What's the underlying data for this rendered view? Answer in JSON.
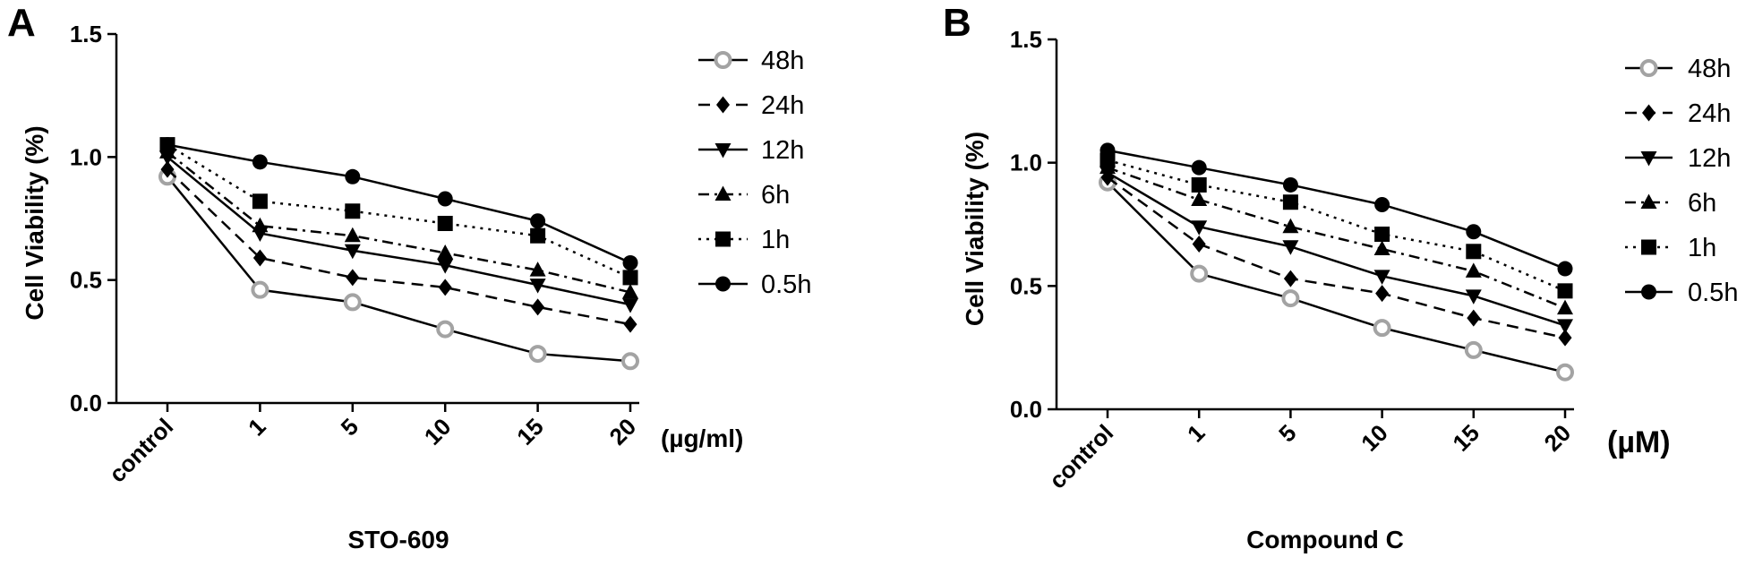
{
  "chart_data": [
    {
      "type": "line",
      "panel_label": "A",
      "title": "",
      "xlabel": "STO-609",
      "x_unit": "(µg/ml)",
      "ylabel": "Cell Viability (%)",
      "categories": [
        "control",
        "1",
        "5",
        "10",
        "15",
        "20"
      ],
      "ylim": [
        0,
        1.5
      ],
      "yticks": [
        "0.0",
        "0.5",
        "1.0",
        "1.5"
      ],
      "grid": false,
      "legend_position": "right",
      "series": [
        {
          "name": "48h",
          "marker": "open-circle",
          "dash": "solid",
          "values": [
            0.92,
            0.46,
            0.41,
            0.3,
            0.2,
            0.17
          ]
        },
        {
          "name": "24h",
          "marker": "diamond",
          "dash": "dashed",
          "values": [
            0.95,
            0.59,
            0.51,
            0.47,
            0.39,
            0.32
          ]
        },
        {
          "name": "12h",
          "marker": "triangle-down",
          "dash": "solid",
          "values": [
            1.0,
            0.69,
            0.62,
            0.56,
            0.48,
            0.4
          ]
        },
        {
          "name": "6h",
          "marker": "triangle-up",
          "dash": "dashdot",
          "values": [
            1.02,
            0.72,
            0.68,
            0.61,
            0.54,
            0.45
          ]
        },
        {
          "name": "1h",
          "marker": "square",
          "dash": "dotted",
          "values": [
            1.05,
            0.82,
            0.78,
            0.73,
            0.68,
            0.51
          ]
        },
        {
          "name": "0.5h",
          "marker": "filled-circle",
          "dash": "solid",
          "values": [
            1.05,
            0.98,
            0.92,
            0.83,
            0.74,
            0.57
          ]
        }
      ]
    },
    {
      "type": "line",
      "panel_label": "B",
      "title": "",
      "xlabel": "Compound C",
      "x_unit": "(µM)",
      "ylabel": "Cell Viability (%)",
      "categories": [
        "control",
        "1",
        "5",
        "10",
        "15",
        "20"
      ],
      "ylim": [
        0,
        1.5
      ],
      "yticks": [
        "0.0",
        "0.5",
        "1.0",
        "1.5"
      ],
      "grid": false,
      "legend_position": "right",
      "series": [
        {
          "name": "48h",
          "marker": "open-circle",
          "dash": "solid",
          "values": [
            0.92,
            0.55,
            0.45,
            0.33,
            0.24,
            0.15
          ]
        },
        {
          "name": "24h",
          "marker": "diamond",
          "dash": "dashed",
          "values": [
            0.94,
            0.67,
            0.53,
            0.47,
            0.37,
            0.29
          ]
        },
        {
          "name": "12h",
          "marker": "triangle-down",
          "dash": "solid",
          "values": [
            0.96,
            0.74,
            0.66,
            0.54,
            0.46,
            0.34
          ]
        },
        {
          "name": "6h",
          "marker": "triangle-up",
          "dash": "dashdot",
          "values": [
            0.98,
            0.85,
            0.74,
            0.65,
            0.56,
            0.41
          ]
        },
        {
          "name": "1h",
          "marker": "square",
          "dash": "dotted",
          "values": [
            1.01,
            0.91,
            0.84,
            0.71,
            0.64,
            0.48
          ]
        },
        {
          "name": "0.5h",
          "marker": "filled-circle",
          "dash": "solid",
          "values": [
            1.05,
            0.98,
            0.91,
            0.83,
            0.72,
            0.57
          ]
        }
      ]
    }
  ]
}
